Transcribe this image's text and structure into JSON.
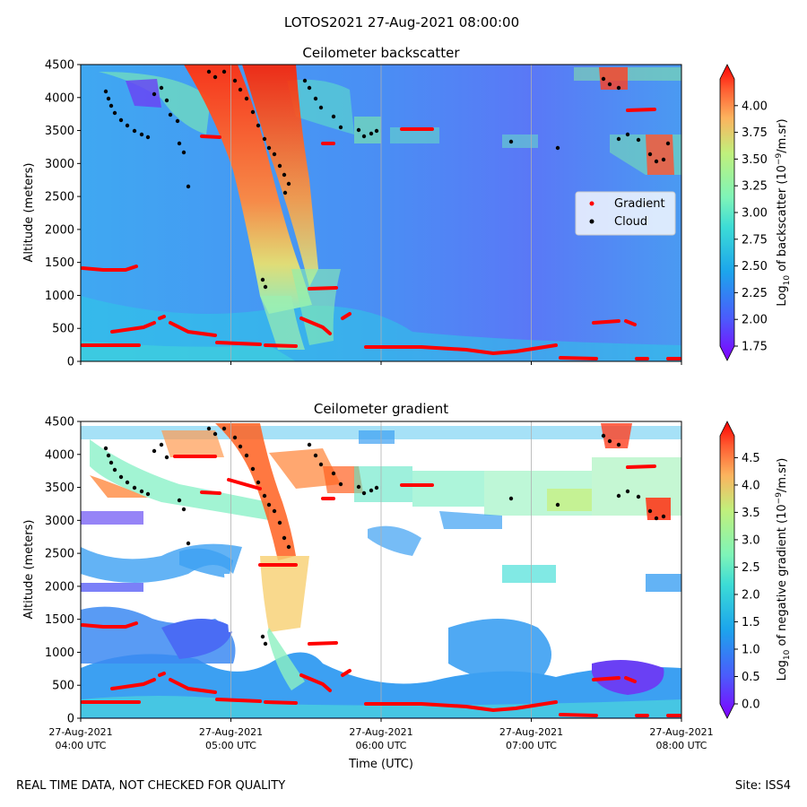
{
  "suptitle": "LOTOS2021 27-Aug-2021 08:00:00",
  "footer": {
    "left": "REAL TIME DATA, NOT CHECKED FOR QUALITY",
    "right": "Site: ISS4"
  },
  "chart_data": [
    {
      "type": "heatmap",
      "title": "Ceilometer backscatter",
      "ylabel": "Altitude (meters)",
      "xlabel": "",
      "ylim": [
        0,
        4500
      ],
      "yticks": [
        "0",
        "500",
        "1000",
        "1500",
        "2000",
        "2500",
        "3000",
        "3500",
        "4000",
        "4500"
      ],
      "xticks": [],
      "colorbar": {
        "label_prefix": "Log",
        "label_sub": "10",
        "label_mid": " of backscatter (10",
        "label_sup": "−9",
        "label_suffix": "/m.sr)",
        "range": [
          1.75,
          4.25
        ],
        "ticks": [
          "1.75",
          "2.00",
          "2.25",
          "2.50",
          "2.75",
          "3.00",
          "3.25",
          "3.50",
          "3.75",
          "4.00"
        ]
      },
      "legend": {
        "position": "center-right",
        "entries": [
          {
            "name": "Gradient",
            "color": "#ff0000"
          },
          {
            "name": "Cloud",
            "color": "#000000"
          }
        ]
      },
      "grid": "vertical"
    },
    {
      "type": "heatmap",
      "title": "Ceilometer gradient",
      "ylabel": "Altitude (meters)",
      "xlabel": "Time (UTC)",
      "ylim": [
        0,
        4500
      ],
      "yticks": [
        "0",
        "500",
        "1000",
        "1500",
        "2000",
        "2500",
        "3000",
        "3500",
        "4000",
        "4500"
      ],
      "xticks": [
        {
          "line1": "27-Aug-2021",
          "line2": "04:00 UTC"
        },
        {
          "line1": "27-Aug-2021",
          "line2": "05:00 UTC"
        },
        {
          "line1": "27-Aug-2021",
          "line2": "06:00 UTC"
        },
        {
          "line1": "27-Aug-2021",
          "line2": "07:00 UTC"
        },
        {
          "line1": "27-Aug-2021",
          "line2": "08:00 UTC"
        }
      ],
      "colorbar": {
        "label_prefix": "Log",
        "label_sub": "10",
        "label_mid": " of negative gradient (10",
        "label_sup": "−9",
        "label_suffix": "/m.sr)",
        "range": [
          0,
          4.9
        ],
        "ticks": [
          "0.0",
          "0.5",
          "1.0",
          "1.5",
          "2.0",
          "2.5",
          "3.0",
          "3.5",
          "4.0",
          "4.5"
        ]
      },
      "grid": "vertical"
    }
  ]
}
